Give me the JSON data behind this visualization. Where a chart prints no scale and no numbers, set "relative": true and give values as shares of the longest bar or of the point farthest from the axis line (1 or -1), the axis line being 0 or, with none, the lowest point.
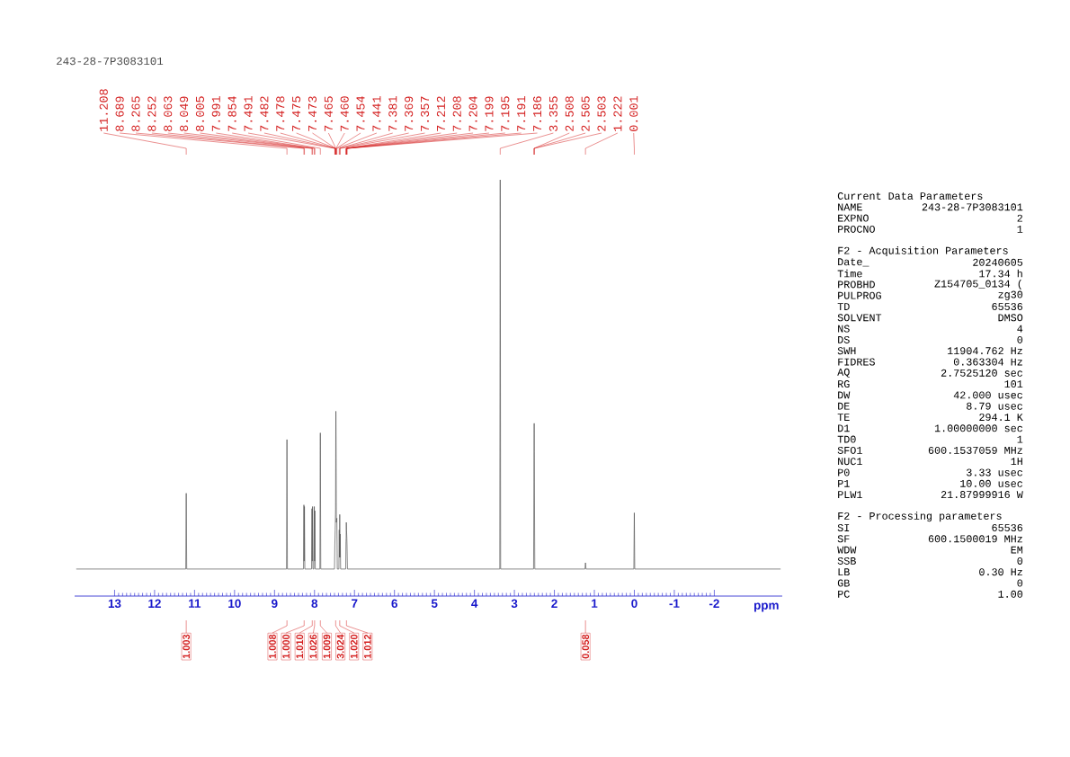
{
  "chart_data": {
    "type": "line",
    "relative": true,
    "title": "243-28-7P3083101",
    "xlabel": "ppm",
    "color": "#555555",
    "xlim": [
      14.0,
      -3.7
    ],
    "xticks": [
      13,
      12,
      11,
      10,
      9,
      8,
      7,
      6,
      5,
      4,
      3,
      2,
      1,
      0,
      -1,
      -2
    ],
    "x": [
      13.95,
      11.22,
      11.208,
      11.196,
      8.7,
      8.689,
      8.678,
      8.275,
      8.265,
      8.258,
      8.252,
      8.242,
      8.073,
      8.063,
      8.056,
      8.049,
      8.039,
      8.015,
      8.005,
      7.998,
      7.991,
      7.981,
      7.865,
      7.854,
      7.843,
      7.5,
      7.491,
      7.482,
      7.478,
      7.475,
      7.473,
      7.465,
      7.46,
      7.454,
      7.441,
      7.43,
      7.39,
      7.381,
      7.375,
      7.369,
      7.363,
      7.357,
      7.347,
      7.22,
      7.212,
      7.208,
      7.204,
      7.199,
      7.195,
      7.191,
      7.186,
      7.176,
      3.366,
      3.355,
      3.344,
      2.52,
      2.508,
      2.505,
      2.503,
      2.49,
      1.235,
      1.222,
      1.209,
      0.012,
      0.001,
      -0.01,
      -3.65
    ],
    "values": [
      0.065,
      0.065,
      0.247,
      0.065,
      0.065,
      0.376,
      0.065,
      0.065,
      0.219,
      0.084,
      0.215,
      0.065,
      0.065,
      0.21,
      0.084,
      0.215,
      0.065,
      0.065,
      0.215,
      0.084,
      0.205,
      0.065,
      0.065,
      0.392,
      0.065,
      0.065,
      0.121,
      0.159,
      0.177,
      0.196,
      0.205,
      0.444,
      0.346,
      0.177,
      0.187,
      0.065,
      0.065,
      0.159,
      0.093,
      0.196,
      0.093,
      0.149,
      0.065,
      0.065,
      0.13,
      0.14,
      0.177,
      0.159,
      0.149,
      0.14,
      0.121,
      0.065,
      0.065,
      1,
      0.065,
      0.065,
      0.346,
      0.415,
      0.346,
      0.065,
      0.065,
      0.08,
      0.065,
      0.065,
      0.2,
      0.065,
      0.065
    ],
    "annotations": [
      {
        "text": "11.208",
        "x": 11.208
      },
      {
        "text": "8.689",
        "x": 8.689
      },
      {
        "text": "8.265",
        "x": 8.265
      },
      {
        "text": "8.252",
        "x": 8.252
      },
      {
        "text": "8.063",
        "x": 8.063
      },
      {
        "text": "8.049",
        "x": 8.049
      },
      {
        "text": "8.005",
        "x": 8.005
      },
      {
        "text": "7.991",
        "x": 7.991
      },
      {
        "text": "7.854",
        "x": 7.854
      },
      {
        "text": "7.491",
        "x": 7.491
      },
      {
        "text": "7.482",
        "x": 7.482
      },
      {
        "text": "7.478",
        "x": 7.478
      },
      {
        "text": "7.475",
        "x": 7.475
      },
      {
        "text": "7.473",
        "x": 7.473
      },
      {
        "text": "7.465",
        "x": 7.465
      },
      {
        "text": "7.460",
        "x": 7.46
      },
      {
        "text": "7.454",
        "x": 7.454
      },
      {
        "text": "7.441",
        "x": 7.441
      },
      {
        "text": "7.381",
        "x": 7.381
      },
      {
        "text": "7.369",
        "x": 7.369
      },
      {
        "text": "7.357",
        "x": 7.357
      },
      {
        "text": "7.212",
        "x": 7.212
      },
      {
        "text": "7.208",
        "x": 7.208
      },
      {
        "text": "7.204",
        "x": 7.204
      },
      {
        "text": "7.199",
        "x": 7.199
      },
      {
        "text": "7.195",
        "x": 7.195
      },
      {
        "text": "7.191",
        "x": 7.191
      },
      {
        "text": "7.186",
        "x": 7.186
      },
      {
        "text": "3.355",
        "x": 3.355
      },
      {
        "text": "2.508",
        "x": 2.508
      },
      {
        "text": "2.505",
        "x": 2.505
      },
      {
        "text": "2.503",
        "x": 2.503
      },
      {
        "text": "1.222",
        "x": 1.222
      },
      {
        "text": "0.001",
        "x": 0.001
      },
      {
        "text": "1.003",
        "x": 11.208
      },
      {
        "text": "1.008",
        "x": 8.689
      },
      {
        "text": "1.000",
        "x": 8.259
      },
      {
        "text": "1.010",
        "x": 8.056
      },
      {
        "text": "1.026",
        "x": 7.998
      },
      {
        "text": "1.009",
        "x": 7.854
      },
      {
        "text": "3.024",
        "x": 7.47
      },
      {
        "text": "1.020",
        "x": 7.369
      },
      {
        "text": "1.012",
        "x": 7.2
      },
      {
        "text": "0.058",
        "x": 1.222
      },
      "Current Data Parameters",
      "NAME",
      "243-28-7P3083101",
      "EXPNO",
      "2",
      "PROCNO",
      "1",
      "F2 - Acquisition Parameters",
      "Date_",
      "20240605",
      "Time",
      "17.34 h",
      "PROBHD",
      "Z154705_0134 (",
      "PULPROG",
      "zg30",
      "TD",
      "65536",
      "SOLVENT",
      "DMSO",
      "NS",
      "4",
      "DS",
      "0",
      "SWH",
      "11904.762 Hz",
      "FIDRES",
      "0.363304 Hz",
      "AQ",
      "2.7525120 sec",
      "RG",
      "101",
      "DW",
      "42.000 usec",
      "DE",
      "8.79 usec",
      "TE",
      "294.1 K",
      "D1",
      "1.00000000 sec",
      "TD0",
      "1",
      "SFO1",
      "600.1537059 MHz",
      "NUC1",
      "1H",
      "P0",
      "3.33 usec",
      "P1",
      "10.00 usec",
      "PLW1",
      "21.87999916 W",
      "F2 - Processing parameters",
      "SI",
      "65536",
      "SF",
      "600.1500019 MHz",
      "WDW",
      "EM",
      "SSB",
      "0",
      "LB",
      "0.30 Hz",
      "GB",
      "0",
      "PC",
      "1.00"
    ]
  }
}
